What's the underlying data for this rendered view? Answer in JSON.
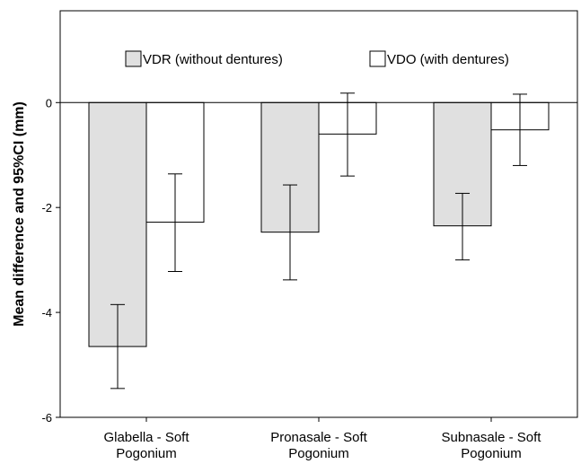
{
  "chart_data": {
    "type": "bar",
    "title": "",
    "xlabel": "",
    "ylabel": "Mean difference and 95%CI (mm)",
    "ylim": [
      -6,
      1.75
    ],
    "yticks": [
      0,
      -2,
      -4,
      -6
    ],
    "categories": [
      [
        "Glabella - Soft",
        "Pogonium"
      ],
      [
        "Pronasale - Soft",
        "Pogonium"
      ],
      [
        "Subnasale - Soft",
        "Pogonium"
      ]
    ],
    "series": [
      {
        "name": "VDR (without dentures)",
        "color": "#e0e0e0",
        "values": [
          -4.65,
          -2.47,
          -2.35
        ],
        "ci_low": [
          -5.45,
          -3.38,
          -3.0
        ],
        "ci_high": [
          -3.85,
          -1.57,
          -1.73
        ]
      },
      {
        "name": "VDO (with dentures)",
        "color": "#ffffff",
        "values": [
          -2.28,
          -0.6,
          -0.52
        ],
        "ci_low": [
          -3.22,
          -1.4,
          -1.2
        ],
        "ci_high": [
          -1.36,
          0.18,
          0.16
        ]
      }
    ],
    "legend_position": "top",
    "grid": false
  }
}
